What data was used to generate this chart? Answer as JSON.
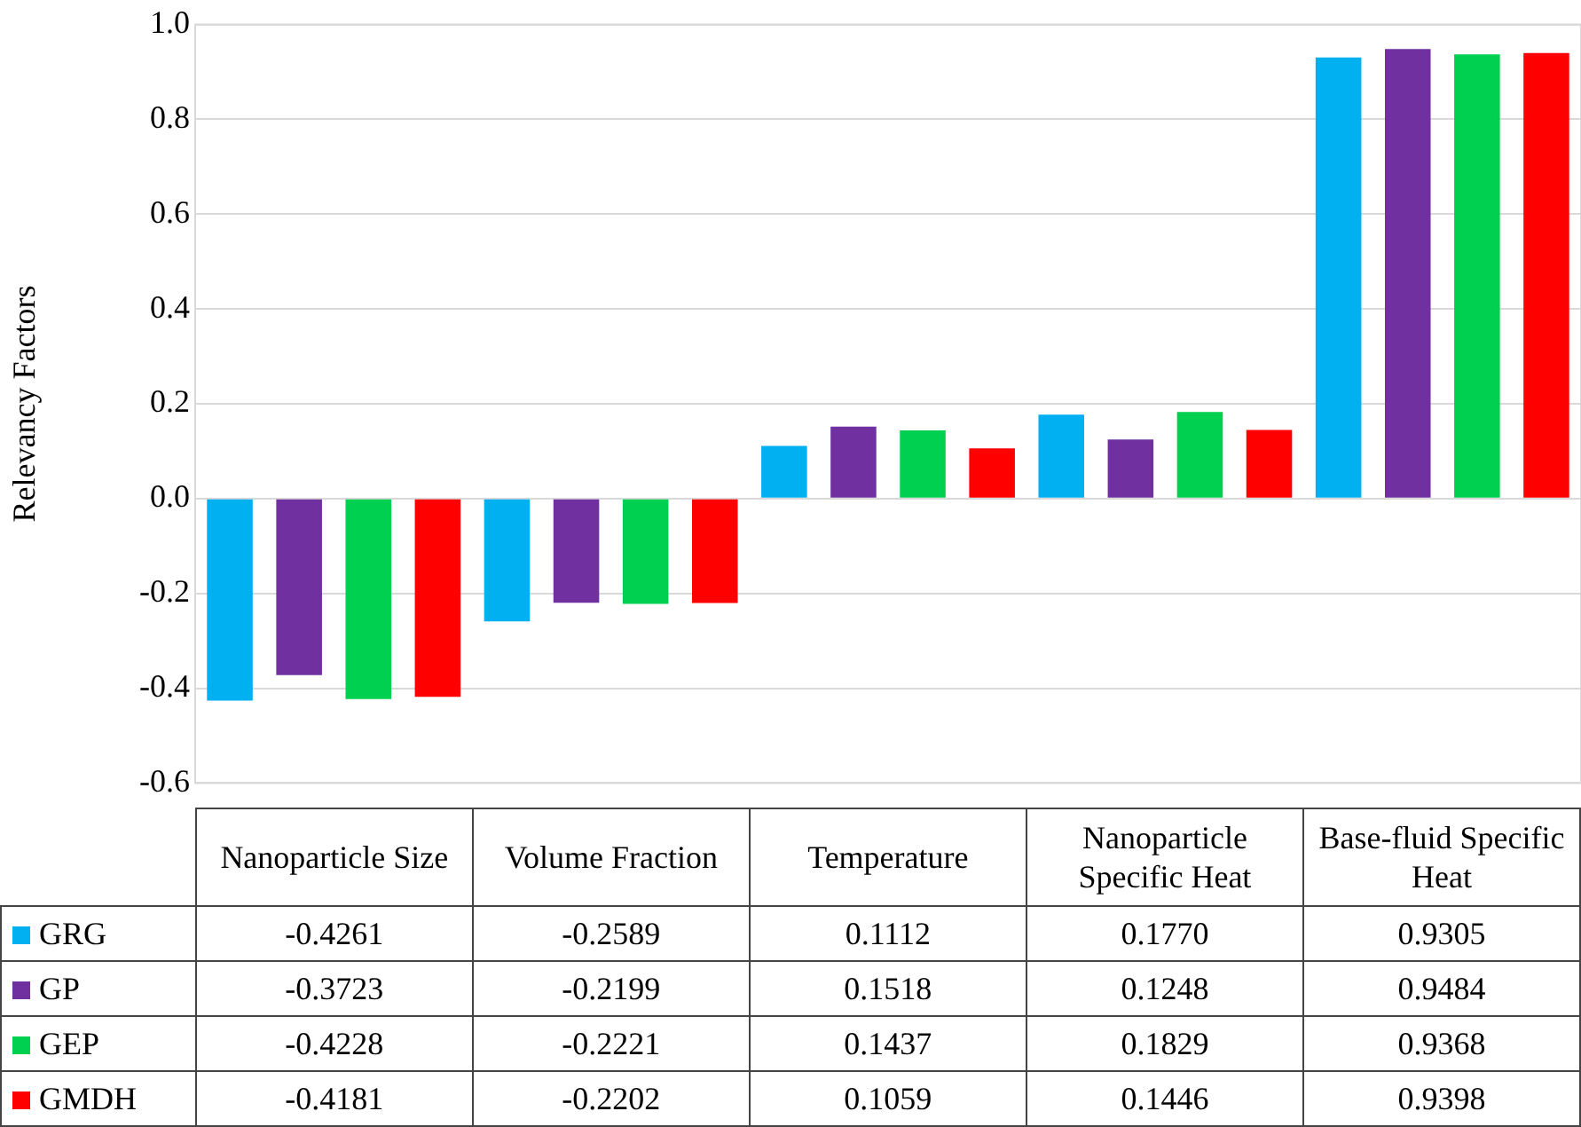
{
  "chart_data": {
    "type": "bar",
    "ylabel": "Relevancy Factors",
    "categories": [
      "Nanoparticle Size",
      "Volume Fraction",
      "Temperature",
      "Nanoparticle Specific Heat",
      "Base-fluid Specific Heat"
    ],
    "series": [
      {
        "name": "GRG",
        "color": "#00b0f0",
        "values": [
          -0.4261,
          -0.2589,
          0.1112,
          0.177,
          0.9305
        ],
        "value_labels": [
          "-0.4261",
          "-0.2589",
          "0.1112",
          "0.1770",
          "0.9305"
        ]
      },
      {
        "name": "GP",
        "color": "#7030a0",
        "values": [
          -0.3723,
          -0.2199,
          0.1518,
          0.1248,
          0.9484
        ],
        "value_labels": [
          "-0.3723",
          "-0.2199",
          "0.1518",
          "0.1248",
          "0.9484"
        ]
      },
      {
        "name": "GEP",
        "color": "#00d050",
        "values": [
          -0.4228,
          -0.2221,
          0.1437,
          0.1829,
          0.9368
        ],
        "value_labels": [
          "-0.4228",
          "-0.2221",
          "0.1437",
          "0.1829",
          "0.9368"
        ]
      },
      {
        "name": "GMDH",
        "color": "#ff0000",
        "values": [
          -0.4181,
          -0.2202,
          0.1059,
          0.1446,
          0.9398
        ],
        "value_labels": [
          "-0.4181",
          "-0.2202",
          "0.1059",
          "0.1446",
          "0.9398"
        ]
      }
    ],
    "ylim": [
      -0.6,
      1
    ],
    "yticks": [
      -0.6,
      -0.4,
      -0.2,
      {
        "value": 0,
        "label": "0.0"
      },
      0.2,
      0.4,
      0.6,
      0.8,
      {
        "value": 1,
        "label": "1.0"
      }
    ],
    "grid": "y",
    "legend": "bottom"
  }
}
